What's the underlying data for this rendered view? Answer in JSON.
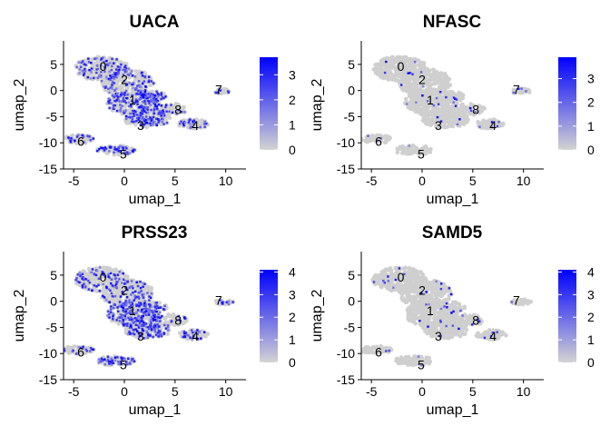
{
  "chart_data": [
    {
      "type": "scatter",
      "title": "UACA",
      "xlabel": "umap_1",
      "ylabel": "umap_2",
      "xlim": [
        -6,
        12
      ],
      "ylim": [
        -15,
        9.5
      ],
      "xticks": [
        "-5",
        "0",
        "5",
        "10"
      ],
      "yticks": [
        "5",
        "0",
        "-5",
        "-10",
        "-15"
      ],
      "colorbar": {
        "ticks": [
          "0",
          "1",
          "2",
          "3"
        ],
        "max": 3.7,
        "low_color": "#d3d3d3",
        "high_color": "#0000ff"
      },
      "expression_level": "high",
      "cluster_labels": [
        {
          "label": "0",
          "x": -2.1,
          "y": 4.6
        },
        {
          "label": "2",
          "x": 0.0,
          "y": 2.1
        },
        {
          "label": "1",
          "x": 0.8,
          "y": -1.8
        },
        {
          "label": "8",
          "x": 5.3,
          "y": -3.6
        },
        {
          "label": "3",
          "x": 1.6,
          "y": -6.7
        },
        {
          "label": "4",
          "x": 7.0,
          "y": -6.7
        },
        {
          "label": "7",
          "x": 9.3,
          "y": 0.2
        },
        {
          "label": "6",
          "x": -4.3,
          "y": -9.7
        },
        {
          "label": "5",
          "x": -0.1,
          "y": -12.1
        }
      ]
    },
    {
      "type": "scatter",
      "title": "NFASC",
      "xlabel": "umap_1",
      "ylabel": "umap_2",
      "xlim": [
        -6,
        12
      ],
      "ylim": [
        -15,
        9.5
      ],
      "xticks": [
        "-5",
        "0",
        "5",
        "10"
      ],
      "yticks": [
        "5",
        "0",
        "-5",
        "-10",
        "-15"
      ],
      "colorbar": {
        "ticks": [
          "0",
          "1",
          "2",
          "3"
        ],
        "max": 3.9,
        "low_color": "#d3d3d3",
        "high_color": "#0000ff"
      },
      "expression_level": "low",
      "cluster_labels": [
        {
          "label": "0",
          "x": -2.1,
          "y": 4.6
        },
        {
          "label": "2",
          "x": 0.0,
          "y": 2.1
        },
        {
          "label": "1",
          "x": 0.8,
          "y": -1.8
        },
        {
          "label": "8",
          "x": 5.3,
          "y": -3.6
        },
        {
          "label": "3",
          "x": 1.6,
          "y": -6.7
        },
        {
          "label": "4",
          "x": 7.0,
          "y": -6.7
        },
        {
          "label": "7",
          "x": 9.3,
          "y": 0.2
        },
        {
          "label": "6",
          "x": -4.3,
          "y": -9.7
        },
        {
          "label": "5",
          "x": -0.1,
          "y": -12.1
        }
      ]
    },
    {
      "type": "scatter",
      "title": "PRSS23",
      "xlabel": "umap_1",
      "ylabel": "umap_2",
      "xlim": [
        -6,
        12
      ],
      "ylim": [
        -15,
        9.5
      ],
      "xticks": [
        "-5",
        "0",
        "5",
        "10"
      ],
      "yticks": [
        "5",
        "0",
        "-5",
        "-10",
        "-15"
      ],
      "colorbar": {
        "ticks": [
          "0",
          "1",
          "2",
          "3",
          "4"
        ],
        "max": 4.1,
        "low_color": "#d3d3d3",
        "high_color": "#0000ff"
      },
      "expression_level": "high",
      "cluster_labels": [
        {
          "label": "0",
          "x": -2.1,
          "y": 4.6
        },
        {
          "label": "2",
          "x": 0.0,
          "y": 2.1
        },
        {
          "label": "1",
          "x": 0.8,
          "y": -1.8
        },
        {
          "label": "8",
          "x": 5.3,
          "y": -3.6
        },
        {
          "label": "3",
          "x": 1.6,
          "y": -6.7
        },
        {
          "label": "4",
          "x": 7.0,
          "y": -6.7
        },
        {
          "label": "7",
          "x": 9.3,
          "y": 0.2
        },
        {
          "label": "6",
          "x": -4.3,
          "y": -9.7
        },
        {
          "label": "5",
          "x": -0.1,
          "y": -12.1
        }
      ]
    },
    {
      "type": "scatter",
      "title": "SAMD5",
      "xlabel": "umap_1",
      "ylabel": "umap_2",
      "xlim": [
        -6,
        12
      ],
      "ylim": [
        -15,
        9.5
      ],
      "xticks": [
        "-5",
        "0",
        "5",
        "10"
      ],
      "yticks": [
        "5",
        "0",
        "-5",
        "-10",
        "-15"
      ],
      "colorbar": {
        "ticks": [
          "0",
          "1",
          "2",
          "3",
          "4"
        ],
        "max": 4.1,
        "low_color": "#d3d3d3",
        "high_color": "#0000ff"
      },
      "expression_level": "low",
      "cluster_labels": [
        {
          "label": "0",
          "x": -2.1,
          "y": 4.6
        },
        {
          "label": "2",
          "x": 0.0,
          "y": 2.1
        },
        {
          "label": "1",
          "x": 0.8,
          "y": -1.8
        },
        {
          "label": "8",
          "x": 5.3,
          "y": -3.6
        },
        {
          "label": "3",
          "x": 1.6,
          "y": -6.7
        },
        {
          "label": "4",
          "x": 7.0,
          "y": -6.7
        },
        {
          "label": "7",
          "x": 9.3,
          "y": 0.2
        },
        {
          "label": "6",
          "x": -4.3,
          "y": -9.7
        },
        {
          "label": "5",
          "x": -0.1,
          "y": -12.1
        }
      ]
    }
  ]
}
